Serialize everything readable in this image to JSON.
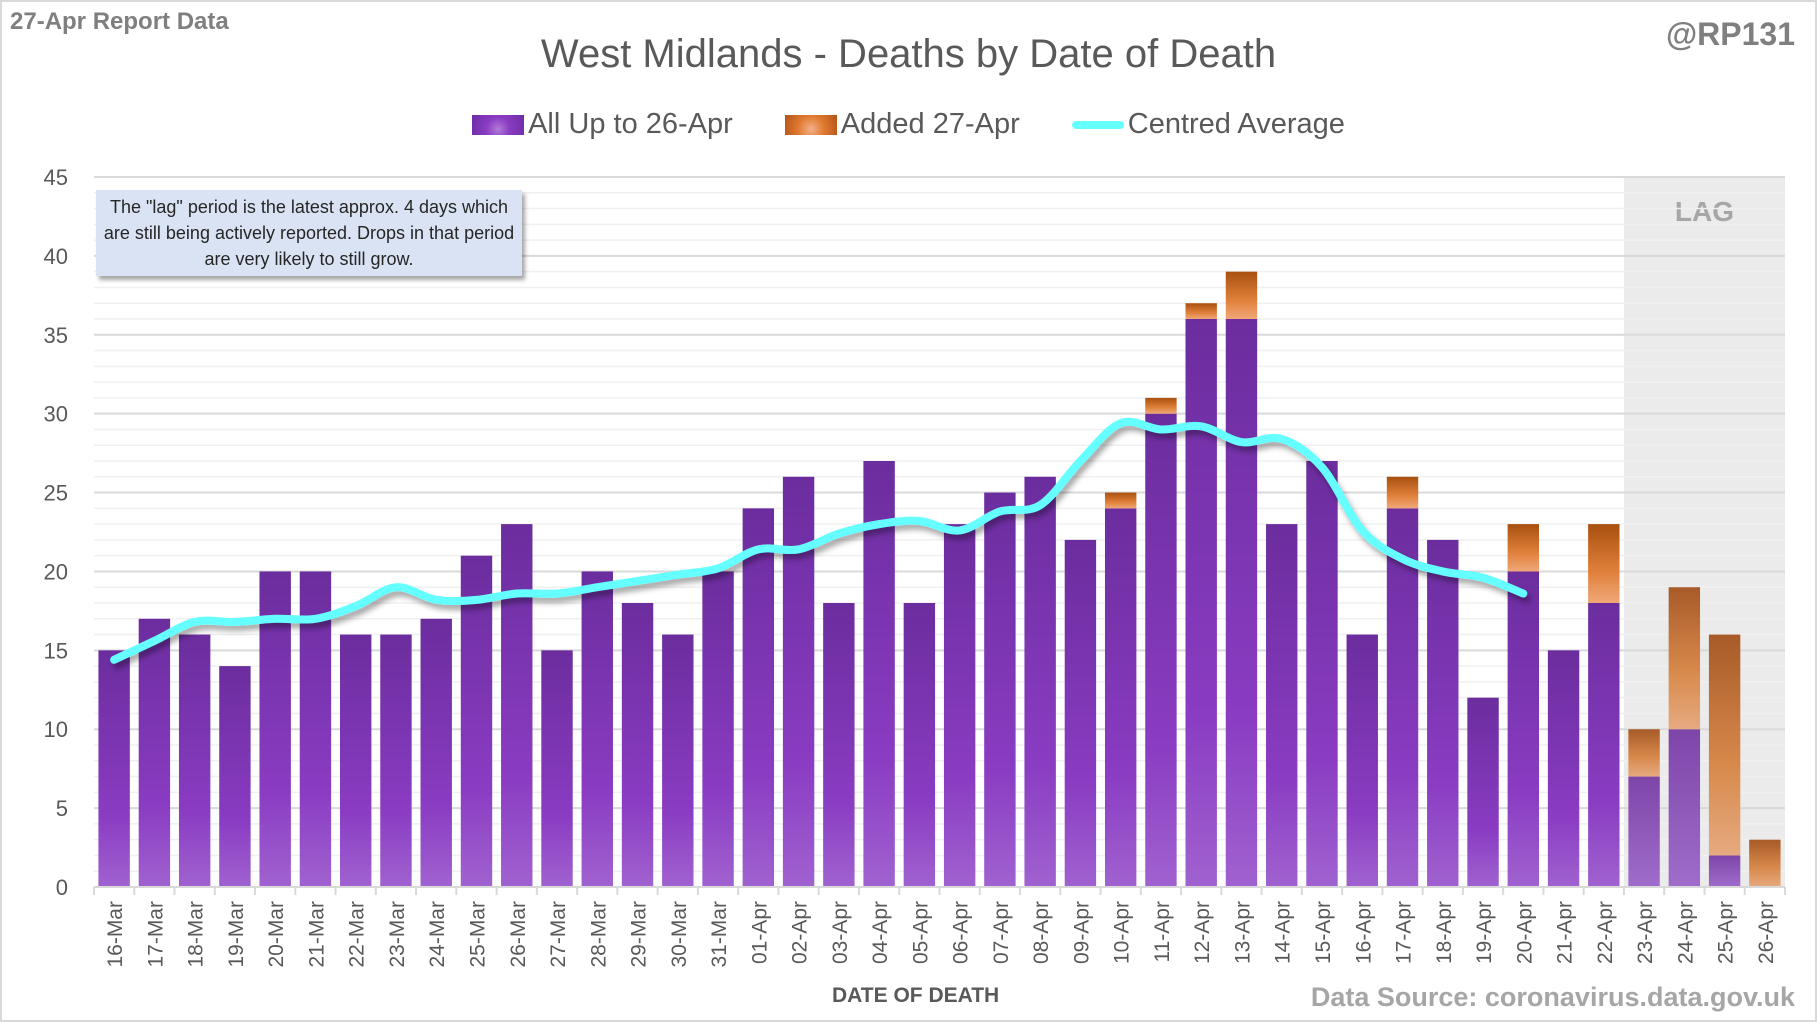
{
  "header": {
    "report_tag": "27-Apr Report Data",
    "handle": "@RP131"
  },
  "annotation": {
    "note": "The \"lag\" period is the latest approx. 4 days which are still being actively reported.  Drops in that period are very likely to still grow.",
    "lag_label": "LAG"
  },
  "footer": {
    "source": "Data Source: coronavirus.data.gov.uk"
  },
  "colors": {
    "existing": "#7a32b4",
    "added": "#e0792f",
    "average": "#66ffff",
    "lag_band": "#ebebeb",
    "grid": "#d9d9d9"
  },
  "chart_data": {
    "type": "bar",
    "stacked": true,
    "title": "West Midlands - Deaths by Date of Death",
    "xlabel": "DATE OF DEATH",
    "ylabel": "",
    "ylim": [
      0,
      45
    ],
    "yticks": [
      0,
      5,
      10,
      15,
      20,
      25,
      30,
      35,
      40,
      45
    ],
    "grid": true,
    "legend_position": "top-center",
    "categories": [
      "16-Mar",
      "17-Mar",
      "18-Mar",
      "19-Mar",
      "20-Mar",
      "21-Mar",
      "22-Mar",
      "23-Mar",
      "24-Mar",
      "25-Mar",
      "26-Mar",
      "27-Mar",
      "28-Mar",
      "29-Mar",
      "30-Mar",
      "31-Mar",
      "01-Apr",
      "02-Apr",
      "03-Apr",
      "04-Apr",
      "05-Apr",
      "06-Apr",
      "07-Apr",
      "08-Apr",
      "09-Apr",
      "10-Apr",
      "11-Apr",
      "12-Apr",
      "13-Apr",
      "14-Apr",
      "15-Apr",
      "16-Apr",
      "17-Apr",
      "18-Apr",
      "19-Apr",
      "20-Apr",
      "21-Apr",
      "22-Apr",
      "23-Apr",
      "24-Apr",
      "25-Apr",
      "26-Apr"
    ],
    "series": [
      {
        "name": "All Up to 26-Apr",
        "kind": "bar",
        "values": [
          15,
          17,
          16,
          14,
          20,
          20,
          16,
          16,
          17,
          21,
          23,
          15,
          20,
          18,
          16,
          20,
          24,
          26,
          18,
          27,
          18,
          23,
          25,
          26,
          22,
          24,
          30,
          36,
          36,
          23,
          27,
          16,
          24,
          22,
          12,
          20,
          15,
          18,
          7,
          10,
          2,
          0
        ]
      },
      {
        "name": "Added 27-Apr",
        "kind": "bar",
        "values": [
          0,
          0,
          0,
          0,
          0,
          0,
          0,
          0,
          0,
          0,
          0,
          0,
          0,
          0,
          0,
          0,
          0,
          0,
          0,
          0,
          0,
          0,
          0,
          0,
          0,
          1,
          1,
          1,
          3,
          0,
          0,
          0,
          2,
          0,
          0,
          3,
          0,
          5,
          3,
          9,
          14,
          3
        ]
      },
      {
        "name": "Centred Average",
        "kind": "line",
        "values": [
          14.4,
          15.6,
          16.8,
          16.8,
          17.0,
          17.0,
          17.8,
          19.0,
          18.2,
          18.2,
          18.6,
          18.6,
          19.0,
          19.4,
          19.8,
          20.2,
          21.4,
          21.4,
          22.4,
          23.0,
          23.2,
          22.6,
          23.8,
          24.2,
          27.0,
          29.4,
          29.0,
          29.2,
          28.2,
          28.4,
          26.6,
          22.6,
          20.8,
          20.0,
          19.6,
          18.6,
          null,
          null,
          null,
          null,
          null,
          null
        ]
      }
    ],
    "lag_range": [
      "23-Apr",
      "26-Apr"
    ]
  }
}
